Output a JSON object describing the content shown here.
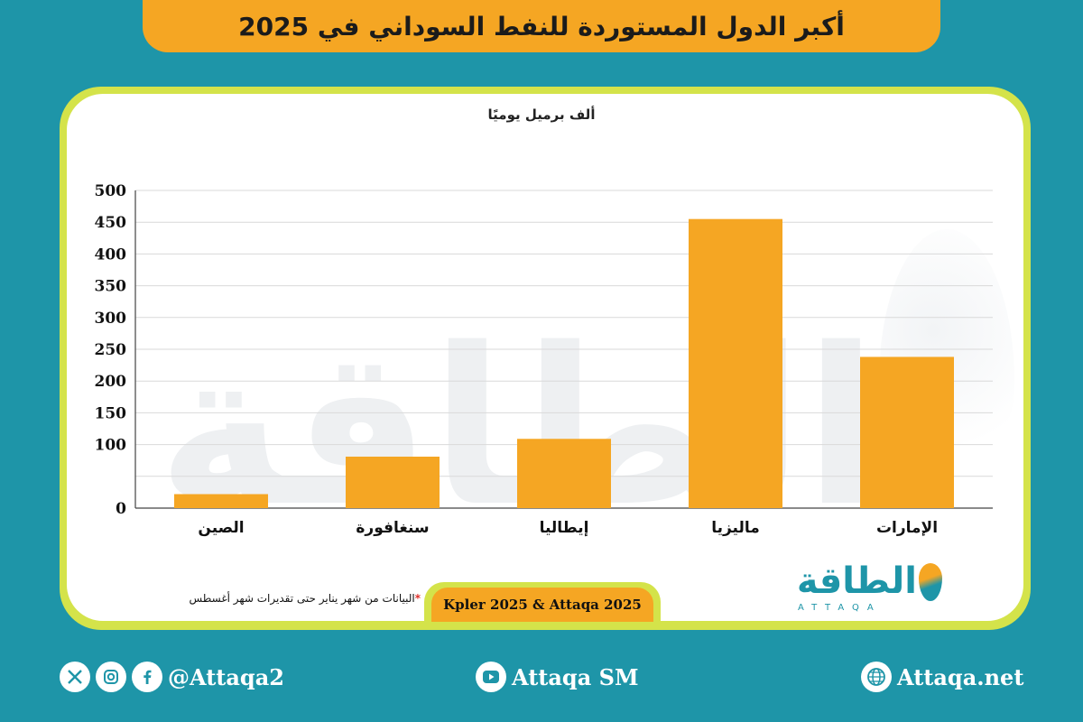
{
  "title": "أكبر الدول المستوردة للنفط السوداني في 2025",
  "unit_label": "ألف برميل يوميًا",
  "chart_data": {
    "type": "bar",
    "ylabel": "ألف برميل يوميًا",
    "categories": [
      "الإمارات",
      "ماليزيا",
      "إيطاليا",
      "سنغافورة",
      "الصين"
    ],
    "values": [
      238,
      455,
      109,
      81,
      22
    ],
    "ylim": [
      0,
      500
    ],
    "yticks": [
      0,
      100,
      150,
      200,
      250,
      300,
      350,
      400,
      450,
      500
    ],
    "grid": true,
    "bar_color": "#f5a623",
    "category_order": "right-to-left"
  },
  "footnote": {
    "star": "*",
    "text": "البيانات من شهر يناير حتى تقديرات شهر أغسطس"
  },
  "source": "Kpler 2025 & Attaqa 2025",
  "logo": {
    "arabic": "الطاقة",
    "english": "ATTAQA"
  },
  "footer": {
    "social_handle": "@Attaqa2",
    "youtube": "Attaqa SM",
    "website": "Attaqa.net"
  },
  "colors": {
    "background": "#1e95a8",
    "accent": "#f5a623",
    "frame": "#d4e34a"
  }
}
